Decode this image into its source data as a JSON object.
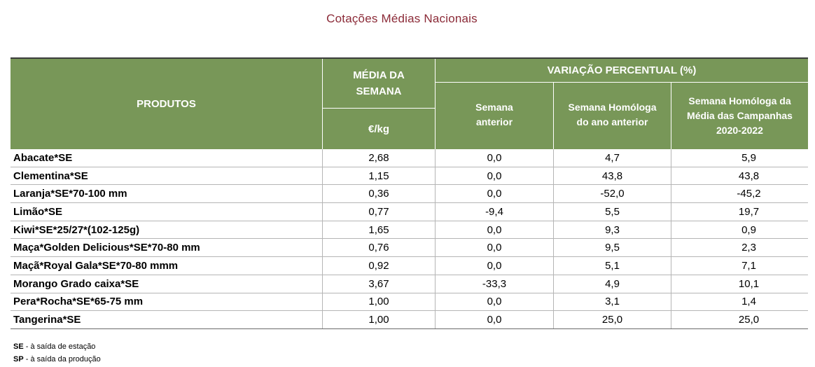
{
  "title": "Cotações Médias Nacionais",
  "colors": {
    "title": "#8B2A37",
    "header_background": "#789758",
    "header_text": "#FFFFFF"
  },
  "table": {
    "headers": {
      "products": "PRODUTOS",
      "weekly_average": "MÉDIA DA SEMANA",
      "unit": "€/kg",
      "percent_variation": "VARIAÇÃO PERCENTUAL (%)",
      "previous_week": "Semana anterior",
      "same_week_last_year": "Semana Homóloga do ano anterior",
      "same_week_campaigns_avg": "Semana Homóloga da Média das Campanhas 2020-2022"
    },
    "rows": [
      {
        "product": "Abacate*SE",
        "weekly_average": "2,68",
        "previous_week": "0,0",
        "same_week_last_year": "4,7",
        "same_week_campaigns_avg": "5,9"
      },
      {
        "product": "Clementina*SE",
        "weekly_average": "1,15",
        "previous_week": "0,0",
        "same_week_last_year": "43,8",
        "same_week_campaigns_avg": "43,8"
      },
      {
        "product": "Laranja*SE*70-100 mm",
        "weekly_average": "0,36",
        "previous_week": "0,0",
        "same_week_last_year": "-52,0",
        "same_week_campaigns_avg": "-45,2"
      },
      {
        "product": "Limão*SE",
        "weekly_average": "0,77",
        "previous_week": "-9,4",
        "same_week_last_year": "5,5",
        "same_week_campaigns_avg": "19,7"
      },
      {
        "product": "Kiwi*SE*25/27*(102-125g)",
        "weekly_average": "1,65",
        "previous_week": "0,0",
        "same_week_last_year": "9,3",
        "same_week_campaigns_avg": "0,9"
      },
      {
        "product": "Maça*Golden Delicious*SE*70-80 mm",
        "weekly_average": "0,76",
        "previous_week": "0,0",
        "same_week_last_year": "9,5",
        "same_week_campaigns_avg": "2,3"
      },
      {
        "product": "Maçã*Royal Gala*SE*70-80 mmm",
        "weekly_average": "0,92",
        "previous_week": "0,0",
        "same_week_last_year": "5,1",
        "same_week_campaigns_avg": "7,1"
      },
      {
        "product": "Morango Grado caixa*SE",
        "weekly_average": "3,67",
        "previous_week": "-33,3",
        "same_week_last_year": "4,9",
        "same_week_campaigns_avg": "10,1"
      },
      {
        "product": "Pera*Rocha*SE*65-75 mm",
        "weekly_average": "1,00",
        "previous_week": "0,0",
        "same_week_last_year": "3,1",
        "same_week_campaigns_avg": "1,4"
      },
      {
        "product": "Tangerina*SE",
        "weekly_average": "1,00",
        "previous_week": "0,0",
        "same_week_last_year": "25,0",
        "same_week_campaigns_avg": "25,0"
      }
    ]
  },
  "footnotes": [
    {
      "abbr": "SE",
      "text": "- à saída de estação"
    },
    {
      "abbr": "SP",
      "text": "- à saída da produção"
    }
  ]
}
